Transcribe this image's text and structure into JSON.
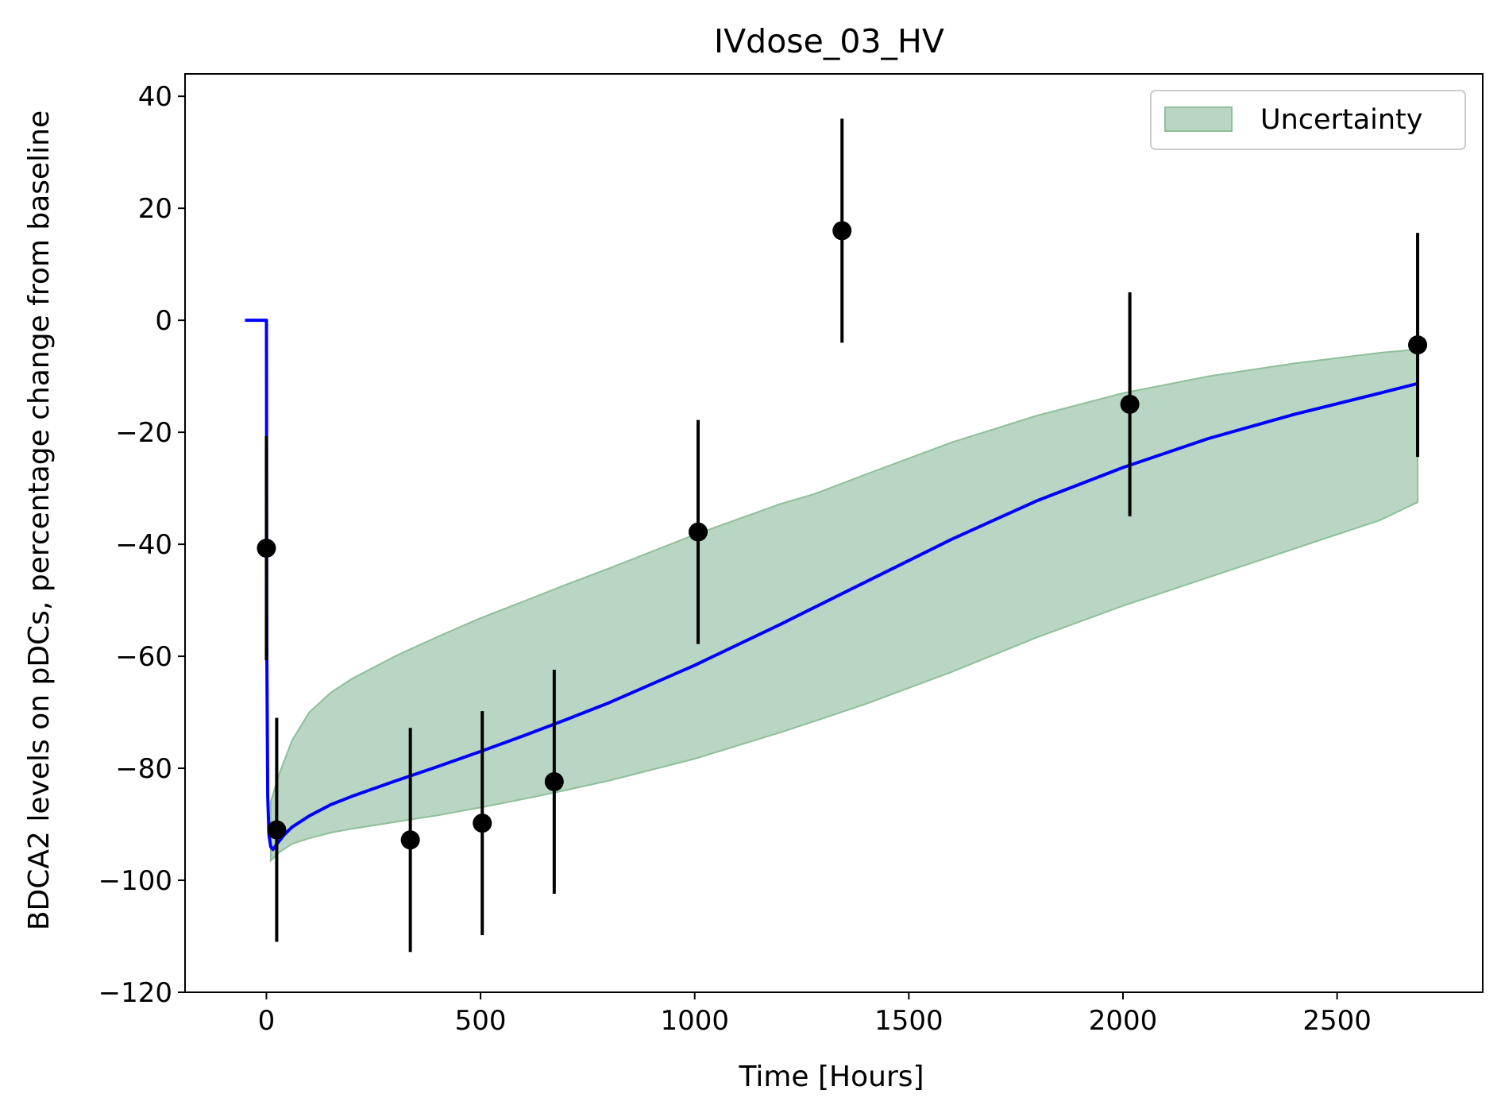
{
  "chart_data": {
    "type": "line",
    "title": "IVdose_03_HV",
    "xlabel": "Time [Hours]",
    "ylabel": "BDCA2 levels on pDCs, percentage change from baseline",
    "xlim": [
      -190,
      2840
    ],
    "ylim": [
      -120,
      44
    ],
    "xticks": [
      0,
      500,
      1000,
      1500,
      2000,
      2500
    ],
    "xtick_labels": [
      "0",
      "500",
      "1000",
      "1500",
      "2000",
      "2500"
    ],
    "yticks": [
      40,
      20,
      0,
      -20,
      -40,
      -60,
      -80,
      -100,
      -120
    ],
    "ytick_labels": [
      "40",
      "20",
      "0",
      "−20",
      "−40",
      "−60",
      "−80",
      "−100",
      "−120"
    ],
    "grid": false,
    "legend": {
      "position": "top-right",
      "entries": [
        "Uncertainty"
      ]
    },
    "colors": {
      "model_line": "#0000ff",
      "band_fill": "#b9d5c3",
      "band_edge": "#8fbf9c",
      "observed": "#000000"
    },
    "model_curve": {
      "x": [
        -50,
        0,
        1,
        3,
        6,
        10,
        15,
        25,
        40,
        60,
        100,
        150,
        200,
        300,
        400,
        500,
        600,
        700,
        800,
        1000,
        1200,
        1400,
        1600,
        1800,
        2000,
        2200,
        2400,
        2600,
        2688
      ],
      "y": [
        0,
        0,
        -60,
        -85,
        -92,
        -94,
        -94.5,
        -93.5,
        -92,
        -90.5,
        -88.5,
        -86.5,
        -85,
        -82.3,
        -79.7,
        -77,
        -74.2,
        -71.3,
        -68.3,
        -61.6,
        -54.3,
        -46.7,
        -39.1,
        -32.2,
        -26.3,
        -21.1,
        -16.8,
        -13,
        -11.3
      ]
    },
    "uncertainty_band": {
      "x": [
        10,
        30,
        60,
        100,
        150,
        200,
        300,
        400,
        500,
        600,
        700,
        800,
        1000,
        1200,
        1280,
        1400,
        1600,
        1800,
        2000,
        2200,
        2400,
        2600,
        2688
      ],
      "upper": [
        -86,
        -81,
        -75,
        -70,
        -66.5,
        -64,
        -60,
        -56.5,
        -53.2,
        -50.2,
        -47.2,
        -44.3,
        -38.3,
        -32.8,
        -31,
        -27.5,
        -21.8,
        -17,
        -13,
        -10,
        -7.7,
        -5.8,
        -5.2
      ],
      "lower": [
        -96.5,
        -95,
        -93.5,
        -92.5,
        -91.5,
        -90.8,
        -89.6,
        -88.4,
        -87,
        -85.5,
        -83.9,
        -82.2,
        -78.3,
        -73.6,
        -71.6,
        -68.5,
        -62.8,
        -56.6,
        -51,
        -45.9,
        -40.8,
        -35.7,
        -32.5
      ]
    },
    "observed": {
      "x": [
        0,
        24,
        336,
        504,
        672,
        1008,
        1344,
        2016,
        2688
      ],
      "y": [
        -40.7,
        -91,
        -92.8,
        -89.8,
        -82.4,
        -37.8,
        16,
        -15,
        -4.4
      ],
      "err_low": [
        -60.7,
        -111,
        -112.8,
        -109.8,
        -102.4,
        -57.8,
        -4,
        -35,
        -24.4
      ],
      "err_high": [
        -20.7,
        -71,
        -72.8,
        -69.8,
        -62.4,
        -17.8,
        36,
        5,
        15.6
      ]
    }
  }
}
